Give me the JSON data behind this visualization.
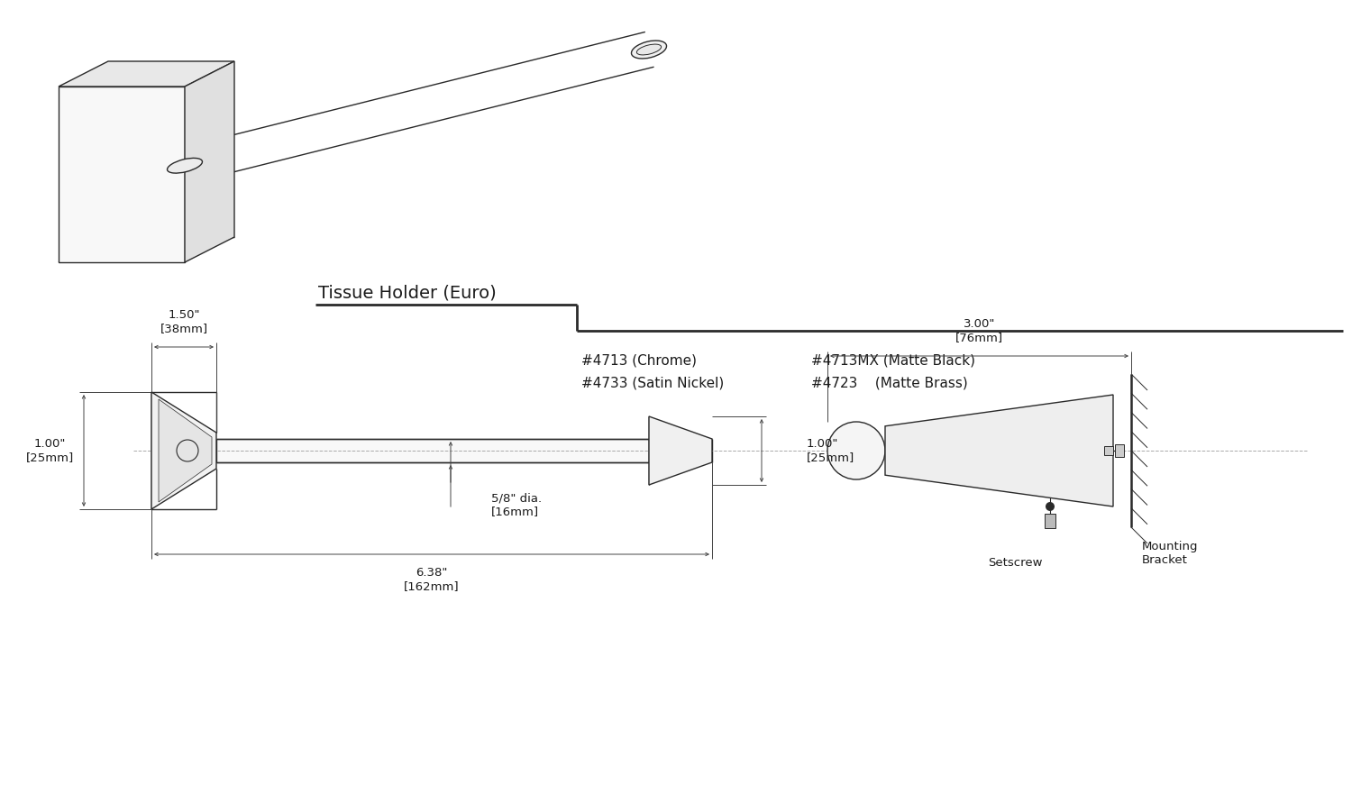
{
  "bg_color": "#ffffff",
  "line_color": "#2a2a2a",
  "dim_color": "#444444",
  "title": "Tissue Holder (Euro)",
  "part_numbers_col1": [
    "#4713 (Chrome)",
    "#4733 (Satin Nickel)"
  ],
  "part_numbers_col2": [
    "#4713MX (Matte Black)",
    "#4723    (Matte Brass)"
  ],
  "dim_1_50": "1.50\"\n[38mm]",
  "dim_1_00_left": "1.00\"\n[25mm]",
  "dim_1_00_right": "1.00\"\n[25mm]",
  "dim_dia": "5/8\" dia.\n[16mm]",
  "dim_6_38": "6.38\"\n[162mm]",
  "dim_3_00": "3.00\"\n[76mm]",
  "setscrew_label": "Setscrew",
  "mounting_bracket_label": "Mounting\nBracket",
  "lw_main": 1.0,
  "lw_dim": 0.7,
  "lw_wall": 1.8
}
